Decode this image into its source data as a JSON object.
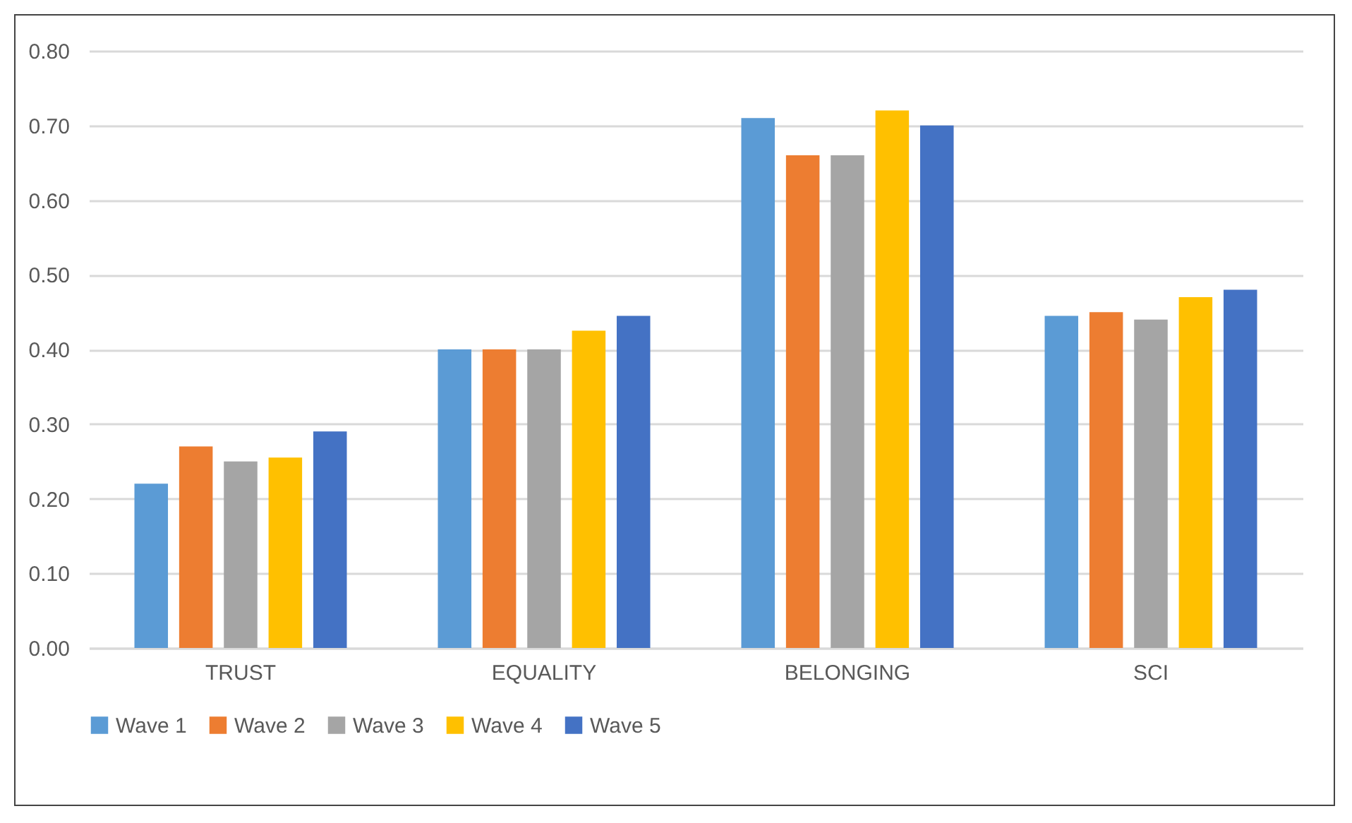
{
  "chart_data": {
    "type": "bar",
    "categories": [
      "TRUST",
      "EQUALITY",
      "BELONGING",
      "SCI"
    ],
    "series": [
      {
        "name": "Wave 1",
        "color": "#5b9bd5",
        "values": [
          0.22,
          0.4,
          0.71,
          0.445
        ]
      },
      {
        "name": "Wave 2",
        "color": "#ed7d31",
        "values": [
          0.27,
          0.4,
          0.66,
          0.45
        ]
      },
      {
        "name": "Wave 3",
        "color": "#a5a5a5",
        "values": [
          0.25,
          0.4,
          0.66,
          0.44
        ]
      },
      {
        "name": "Wave 4",
        "color": "#ffc000",
        "values": [
          0.255,
          0.425,
          0.72,
          0.47
        ]
      },
      {
        "name": "Wave 5",
        "color": "#4472c4",
        "values": [
          0.29,
          0.445,
          0.7,
          0.48
        ]
      }
    ],
    "ylim": [
      0,
      0.8
    ],
    "yticks": [
      {
        "value": 0,
        "label": "0.00"
      },
      {
        "value": 0.1,
        "label": "0.10"
      },
      {
        "value": 0.2,
        "label": "0.20"
      },
      {
        "value": 0.3,
        "label": "0.30"
      },
      {
        "value": 0.4,
        "label": "0.40"
      },
      {
        "value": 0.5,
        "label": "0.50"
      },
      {
        "value": 0.6,
        "label": "0.60"
      },
      {
        "value": 0.7,
        "label": "0.70"
      },
      {
        "value": 0.8,
        "label": "0.80"
      }
    ],
    "grid": "y",
    "legend": "bottom"
  }
}
